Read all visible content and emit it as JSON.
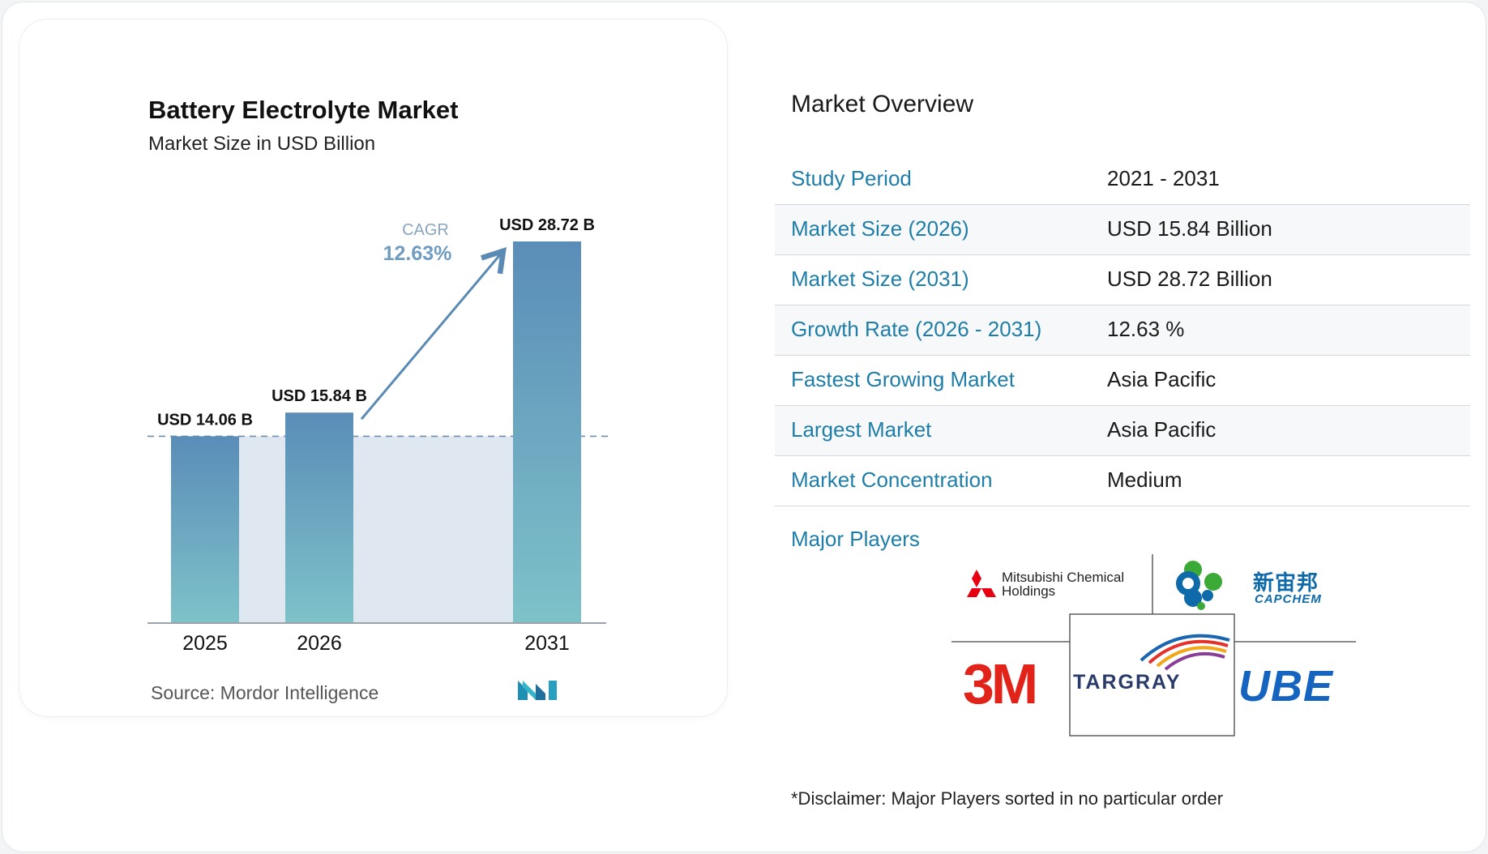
{
  "chart": {
    "title": "Battery Electrolyte Market",
    "subtitle": "Market Size in USD Billion",
    "cagr_label": "CAGR",
    "cagr_value": "12.63%",
    "source": "Source:  Mordor Intelligence",
    "logo_letters": "MI"
  },
  "chart_data": {
    "type": "bar",
    "title": "Battery Electrolyte Market",
    "subtitle": "Market Size in USD Billion",
    "categories": [
      "2025",
      "2026",
      "2031"
    ],
    "values": [
      14.06,
      15.84,
      28.72
    ],
    "value_labels": [
      "USD 14.06 B",
      "USD 15.84 B",
      "USD 28.72 B"
    ],
    "ylim": [
      0,
      28.72
    ],
    "grid": false,
    "annotations": [
      "CAGR",
      "12.63%"
    ],
    "colors": {
      "bar_top": "#5a8db8",
      "bar_bottom": "#7ec2c9",
      "band": "#dfe8f1",
      "arrow": "#5b8bb5"
    }
  },
  "overview": {
    "title": "Market Overview",
    "rows": [
      {
        "label": "Study Period",
        "value": "2021 - 2031"
      },
      {
        "label": "Market Size (2026)",
        "value": "USD 15.84 Billion"
      },
      {
        "label": "Market Size (2031)",
        "value": "USD 28.72 Billion"
      },
      {
        "label": "Growth Rate (2026 - 2031)",
        "value": "12.63 %"
      },
      {
        "label": "Fastest Growing Market",
        "value": "Asia Pacific"
      },
      {
        "label": "Largest Market",
        "value": "Asia Pacific"
      },
      {
        "label": "Market Concentration",
        "value": "Medium"
      }
    ],
    "players_label": "Major Players",
    "players": {
      "mitsubishi_line1": "Mitsubishi Chemical",
      "mitsubishi_line2": "Holdings",
      "capchem_cn": "新宙邦",
      "capchem_en": "CAPCHEM",
      "threem": "3M",
      "targray": "TARGRAY",
      "ube": "UBE"
    },
    "disclaimer": "*Disclaimer: Major Players sorted in no particular order",
    "colors": {
      "label": "#1f7ea8",
      "mitsubishi_red": "#e60012",
      "threem_red": "#e2231a",
      "capchem_blue": "#0e6aa8",
      "capchem_green": "#3aa935",
      "ube_blue": "#1565c0"
    }
  }
}
